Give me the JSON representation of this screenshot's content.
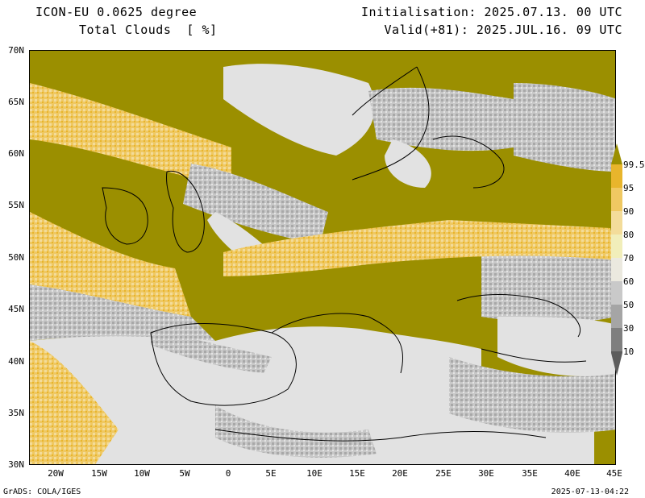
{
  "header": {
    "model": "ICON-EU 0.0625 degree",
    "field": "Total Clouds  [ %]",
    "init": "Initialisation: 2025.07.13. 00 UTC",
    "valid": "Valid(+81): 2025.JUL.16. 09 UTC"
  },
  "axes": {
    "lat_labels": [
      "70N",
      "65N",
      "60N",
      "55N",
      "50N",
      "45N",
      "40N",
      "35N",
      "30N"
    ],
    "lon_labels": [
      "20W",
      "15W",
      "10W",
      "5W",
      "0",
      "5E",
      "10E",
      "15E",
      "20E",
      "25E",
      "30E",
      "35E",
      "40E",
      "45E"
    ]
  },
  "colorbar": {
    "levels": [
      "99.5",
      "95",
      "90",
      "80",
      "70",
      "60",
      "50",
      "30",
      "10"
    ],
    "colors": [
      "#9b8f00",
      "#e8b52c",
      "#efc862",
      "#f3dc9a",
      "#f1eeba",
      "#ebe9df",
      "#c9c9c9",
      "#a5a5a5",
      "#7f7f7f",
      "#5c5c5c"
    ]
  },
  "palette": {
    "overcast": "#9b8f00",
    "clear": "#e2e2e2",
    "coastline": "#000000"
  },
  "footer": {
    "left": "GrADS: COLA/IGES",
    "right": "2025-07-13-04:22"
  }
}
